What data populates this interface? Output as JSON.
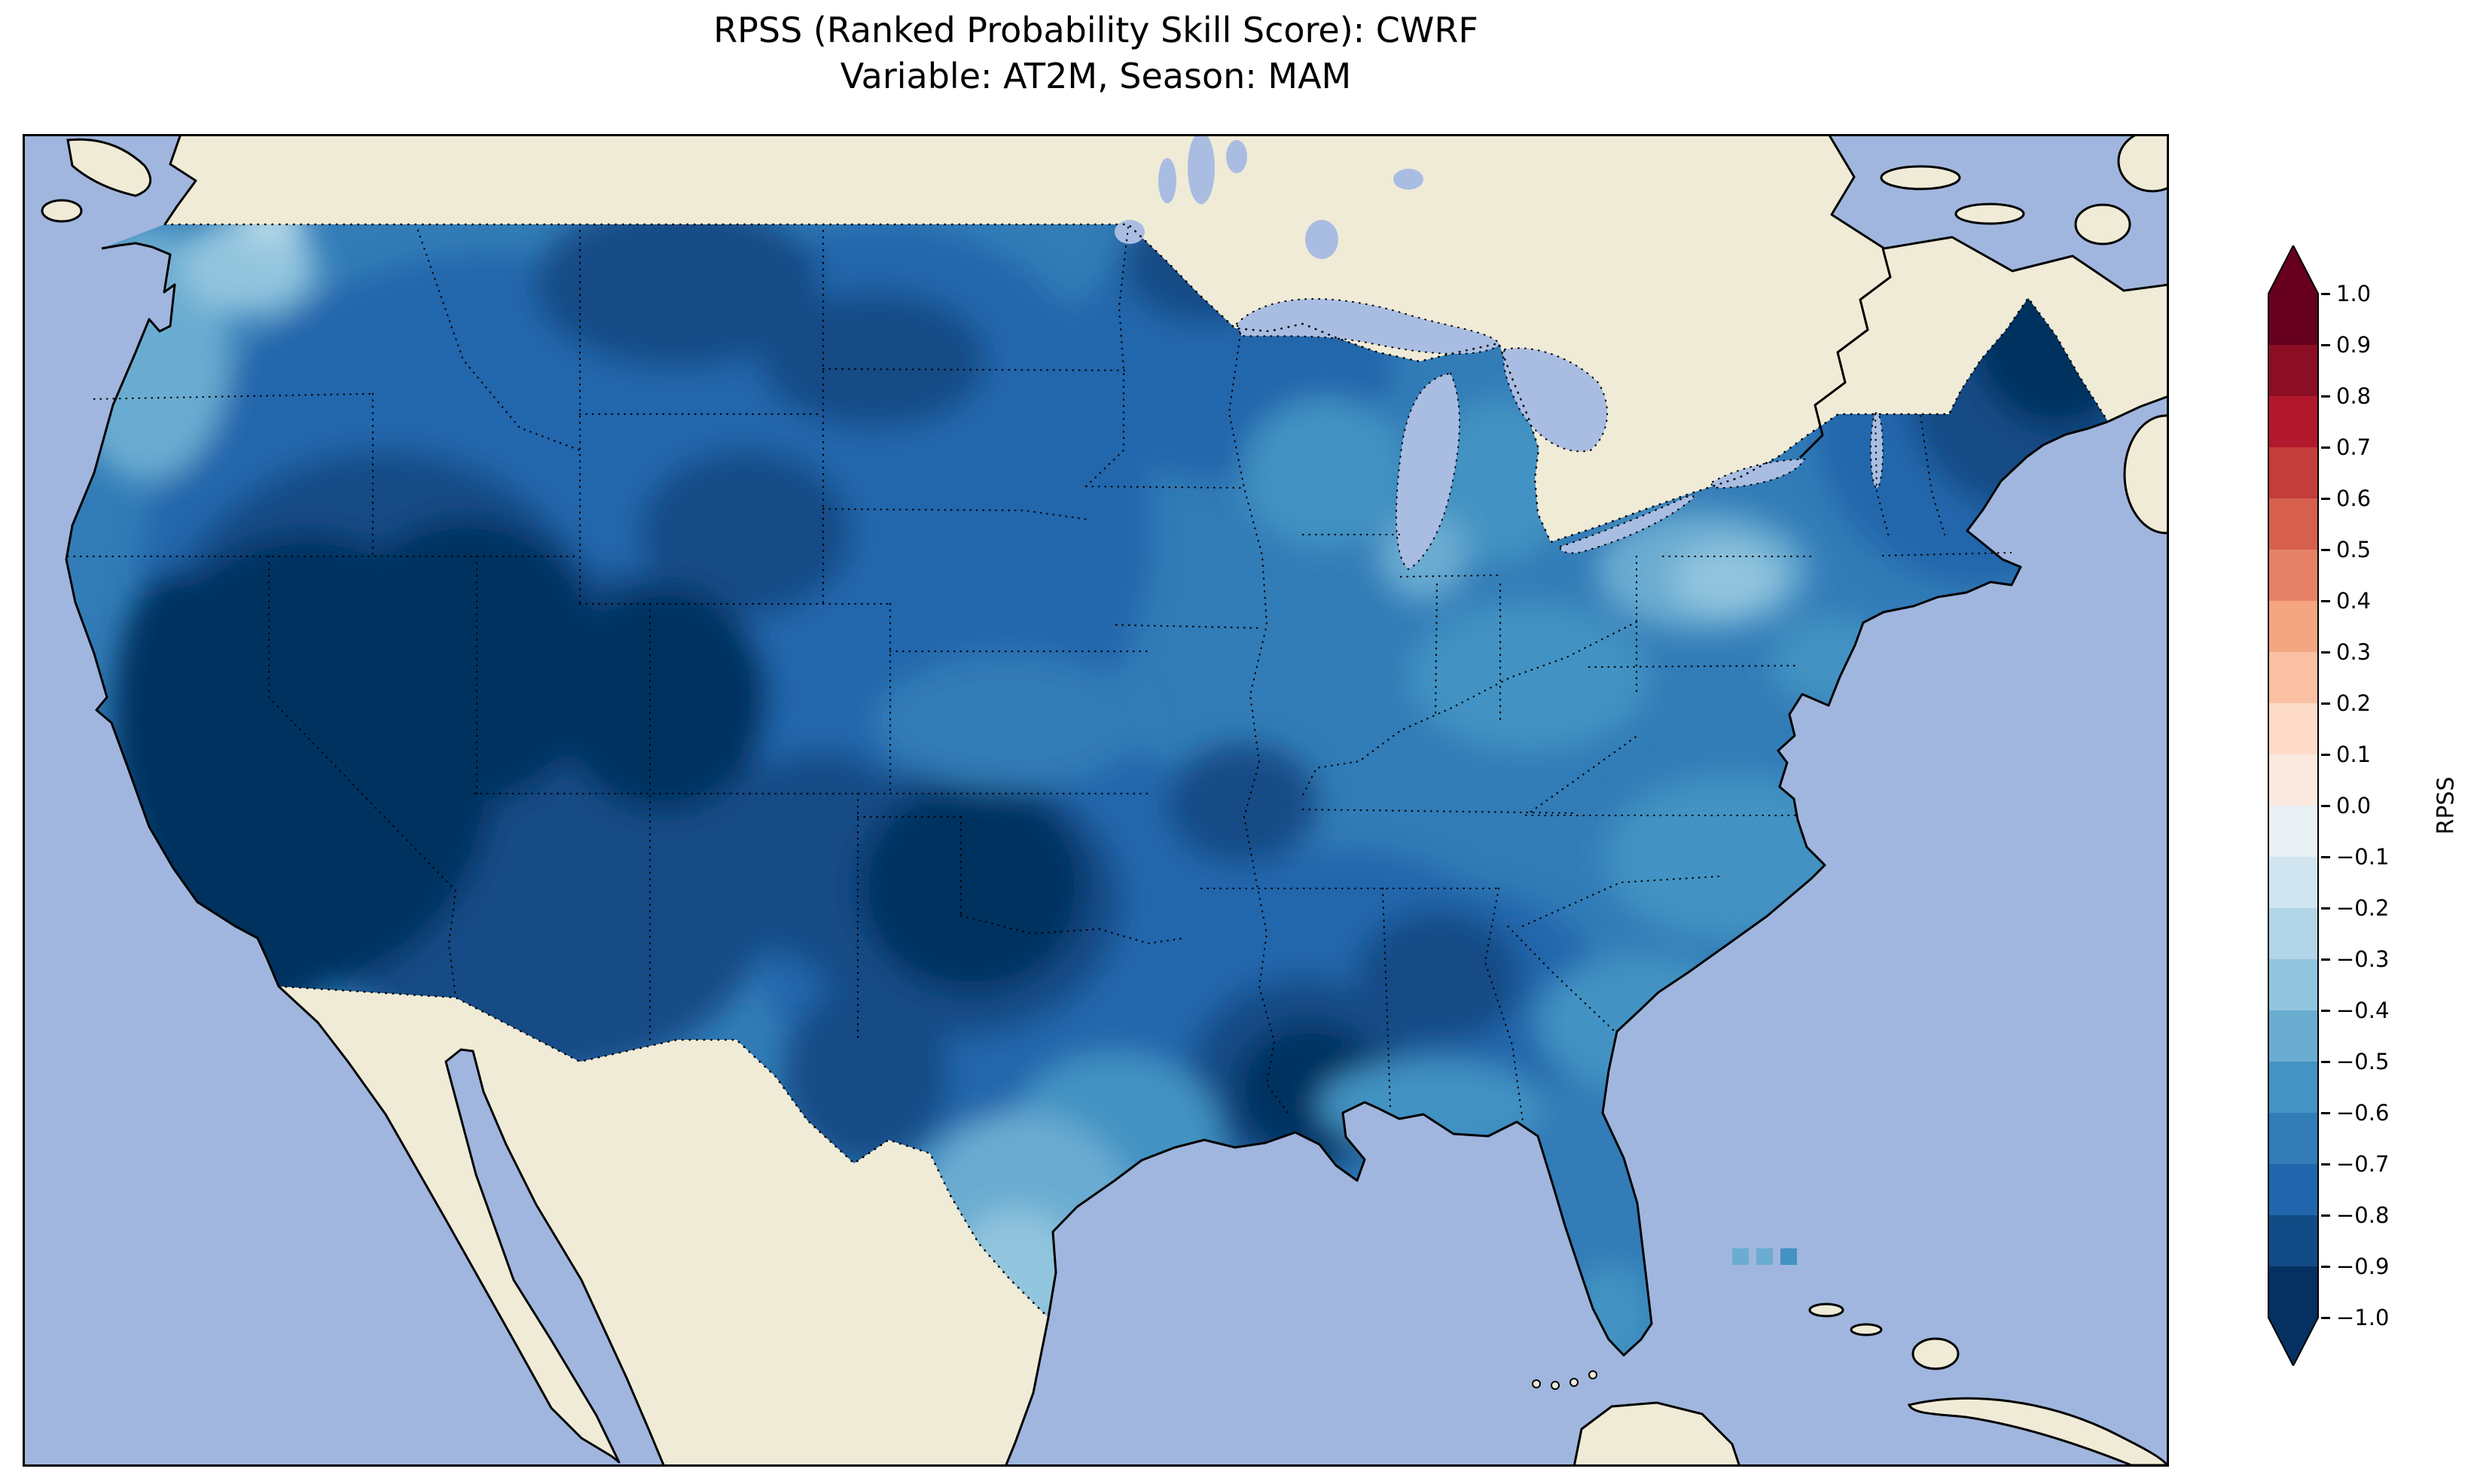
{
  "figure": {
    "title_line1": "RPSS (Ranked Probability Skill Score): CWRF",
    "title_line2": "Variable: AT2M, Season: MAM"
  },
  "colorbar": {
    "label": "RPSS",
    "ticks": [
      "1.0",
      "0.9",
      "0.8",
      "0.7",
      "0.6",
      "0.5",
      "0.4",
      "0.3",
      "0.2",
      "0.1",
      "0.0",
      "−0.1",
      "−0.2",
      "−0.3",
      "−0.4",
      "−0.5",
      "−0.6",
      "−0.7",
      "−0.8",
      "−0.9",
      "−1.0"
    ],
    "colors": [
      "#67001f",
      "#8c0e25",
      "#b2182b",
      "#c43c3c",
      "#d6604d",
      "#e58267",
      "#f4a582",
      "#f9c0a4",
      "#fddbc7",
      "#fae9df",
      "#e9f0f4",
      "#d1e5f0",
      "#b2d5e7",
      "#92c5de",
      "#6bacd1",
      "#4393c3",
      "#327cb7",
      "#2166ac",
      "#134b86",
      "#053061"
    ],
    "extend_over_color": "#67001f",
    "extend_under_color": "#053061"
  },
  "map_colors": {
    "ocean": "#a0b6de",
    "land": "#f0ebd6",
    "lake": "#a9bde2",
    "coastline": "#000000"
  },
  "chart_data": {
    "type": "heatmap",
    "title": "RPSS (Ranked Probability Skill Score): CWRF",
    "subtitle": "Variable: AT2M, Season: MAM",
    "model": "CWRF",
    "variable": "AT2M",
    "season": "MAM",
    "metric": "RPSS",
    "region": "Contiguous United States (CONUS) with surrounding Canada, Mexico, Gulf of Mexico and western Atlantic",
    "colorbar": {
      "label": "RPSS",
      "min": -1.0,
      "max": 1.0,
      "tick_step": 0.1,
      "colormap": "RdBu (red = positive skill, white near 0, blue = negative skill)",
      "extend": "both"
    },
    "field_summary": "RPSS is negative (blue shades) over essentially the entire CONUS; no areas of positive (red) skill are visible. Darkest (most negative) values cover California/Nevada/Utah, western Colorado, an Oklahoma/north-Texas core, coastal Louisiana and northern New England/Maine. Lightest (least negative) values occur along the Pacific Northwest coast/Cascades, south Texas, and a patch over the Pennsylvania/Appalachian region.",
    "regional_values_approx": [
      {
        "region": "California / Nevada / Utah (Great Basin)",
        "rpss": -0.95
      },
      {
        "region": "Western Colorado",
        "rpss": -0.9
      },
      {
        "region": "Pacific Northwest coast (W Washington / Oregon)",
        "rpss": -0.35
      },
      {
        "region": "Washington Cascades (small bright spot)",
        "rpss": -0.15
      },
      {
        "region": "Montana / northern Rockies",
        "rpss": -0.8
      },
      {
        "region": "Dakotas / northern plains",
        "rpss": -0.7
      },
      {
        "region": "Kansas / central plains",
        "rpss": -0.6
      },
      {
        "region": "Oklahoma / north Texas (dark core)",
        "rpss": -0.9
      },
      {
        "region": "South Texas",
        "rpss": -0.3
      },
      {
        "region": "Texas Gulf coast",
        "rpss": -0.5
      },
      {
        "region": "Coastal Louisiana",
        "rpss": -0.9
      },
      {
        "region": "Lower Mississippi valley / Southeast interior",
        "rpss": -0.75
      },
      {
        "region": "Upper Midwest (MN / WI / MI)",
        "rpss": -0.6
      },
      {
        "region": "Ohio valley / Mid-Atlantic",
        "rpss": -0.55
      },
      {
        "region": "Pennsylvania / Appalachian light patch",
        "rpss": -0.35
      },
      {
        "region": "Virginia / Carolinas",
        "rpss": -0.5
      },
      {
        "region": "Florida peninsula",
        "rpss": -0.5
      },
      {
        "region": "New England interior / Maine",
        "rpss": -0.95
      }
    ]
  }
}
